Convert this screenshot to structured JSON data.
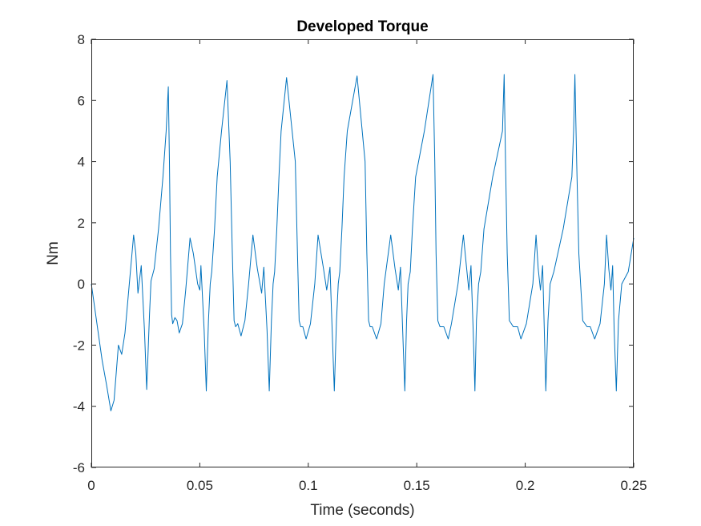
{
  "chart_data": {
    "type": "line",
    "title": "Developed Torque",
    "xlabel": "Time (seconds)",
    "ylabel": "Nm",
    "xlim": [
      0,
      0.25
    ],
    "ylim": [
      -6,
      8
    ],
    "x_ticks": [
      0,
      0.05,
      0.1,
      0.15,
      0.2,
      0.25
    ],
    "x_tick_labels": [
      "0",
      "0.05",
      "0.1",
      "0.15",
      "0.2",
      "0.25"
    ],
    "y_ticks": [
      -6,
      -4,
      -2,
      0,
      2,
      4,
      6,
      8
    ],
    "y_tick_labels": [
      "-6",
      "-4",
      "-2",
      "0",
      "2",
      "4",
      "6",
      "8"
    ],
    "grid": false,
    "box": true,
    "line_color": "#0072BD",
    "axis_color": "#262626",
    "series": [
      {
        "x": [
          0,
          0.001,
          0.003,
          0.005,
          0.007,
          0.009,
          0.0105,
          0.0125,
          0.014,
          0.0155,
          0.0175,
          0.0195,
          0.0205,
          0.0215,
          0.023,
          0.0245,
          0.0255,
          0.0268,
          0.0275,
          0.029,
          0.031,
          0.033,
          0.0345,
          0.0355,
          0.036,
          0.0365,
          0.037,
          0.0375,
          0.0385,
          0.0395,
          0.0405,
          0.042,
          0.0435,
          0.0455,
          0.047,
          0.049,
          0.05,
          0.0505,
          0.052,
          0.053,
          0.054,
          0.0548,
          0.0555,
          0.0568,
          0.058,
          0.06,
          0.0625,
          0.064,
          0.065,
          0.0658,
          0.0665,
          0.0675,
          0.069,
          0.0708,
          0.0725,
          0.0745,
          0.0765,
          0.0785,
          0.0795,
          0.081,
          0.082,
          0.083,
          0.0838,
          0.0845,
          0.0855,
          0.0865,
          0.0875,
          0.09,
          0.094,
          0.095,
          0.0958,
          0.0965,
          0.0975,
          0.099,
          0.101,
          0.103,
          0.1045,
          0.107,
          0.1085,
          0.11,
          0.111,
          0.112,
          0.113,
          0.1138,
          0.1145,
          0.1155,
          0.1165,
          0.118,
          0.1225,
          0.1262,
          0.127,
          0.1278,
          0.1285,
          0.1295,
          0.1315,
          0.1335,
          0.135,
          0.138,
          0.14,
          0.1415,
          0.1425,
          0.1435,
          0.1445,
          0.1453,
          0.146,
          0.147,
          0.148,
          0.1495,
          0.1535,
          0.1575,
          0.1583,
          0.1589,
          0.1597,
          0.1607,
          0.1625,
          0.1645,
          0.166,
          0.169,
          0.1715,
          0.173,
          0.174,
          0.175,
          0.176,
          0.1768,
          0.1775,
          0.1785,
          0.1795,
          0.181,
          0.185,
          0.1895,
          0.1903,
          0.1909,
          0.1917,
          0.1927,
          0.1945,
          0.1965,
          0.198,
          0.2005,
          0.2035,
          0.205,
          0.206,
          0.207,
          0.208,
          0.2088,
          0.2095,
          0.2105,
          0.2115,
          0.2132,
          0.2175,
          0.2215,
          0.2223,
          0.2229,
          0.2237,
          0.2247,
          0.2265,
          0.2285,
          0.23,
          0.232,
          0.2345,
          0.2365,
          0.2375,
          0.2385,
          0.2395,
          0.2403,
          0.241,
          0.242,
          0.243,
          0.2445,
          0.2475,
          0.25
        ],
        "y": [
          0,
          -0.5,
          -1.5,
          -2.5,
          -3.3,
          -4.15,
          -3.8,
          -2.0,
          -2.3,
          -1.6,
          0.0,
          1.6,
          1.0,
          -0.3,
          0.6,
          -1.5,
          -3.45,
          -1.0,
          0.1,
          0.5,
          1.8,
          3.5,
          5.0,
          6.45,
          4.0,
          1.0,
          -1.0,
          -1.3,
          -1.1,
          -1.2,
          -1.6,
          -1.3,
          -0.2,
          1.5,
          1.0,
          0.0,
          -0.2,
          0.6,
          -1.5,
          -3.5,
          -1.2,
          0.0,
          0.4,
          1.8,
          3.5,
          5.0,
          6.65,
          4.0,
          1.0,
          -1.2,
          -1.4,
          -1.3,
          -1.7,
          -1.2,
          0.0,
          1.6,
          0.5,
          -0.3,
          0.55,
          -1.5,
          -3.5,
          -1.2,
          0.0,
          0.4,
          1.8,
          3.5,
          5.0,
          6.75,
          4.0,
          1.0,
          -1.2,
          -1.4,
          -1.4,
          -1.8,
          -1.3,
          0.0,
          1.6,
          0.5,
          -0.2,
          0.55,
          -1.5,
          -3.5,
          -1.2,
          0.0,
          0.4,
          1.8,
          3.5,
          5.0,
          6.8,
          4.0,
          1.0,
          -1.2,
          -1.4,
          -1.4,
          -1.8,
          -1.3,
          0.0,
          1.6,
          0.5,
          -0.2,
          0.55,
          -1.5,
          -3.5,
          -1.2,
          0.0,
          0.4,
          1.8,
          3.5,
          5.0,
          6.85,
          4.0,
          1.0,
          -1.2,
          -1.4,
          -1.4,
          -1.8,
          -1.3,
          0.0,
          1.6,
          0.5,
          -0.2,
          0.6,
          -1.5,
          -3.5,
          -1.2,
          0.0,
          0.4,
          1.8,
          3.5,
          5.0,
          6.85,
          4.0,
          1.0,
          -1.2,
          -1.4,
          -1.4,
          -1.8,
          -1.3,
          0.0,
          1.6,
          0.5,
          -0.2,
          0.6,
          -1.5,
          -3.5,
          -1.2,
          0.0,
          0.4,
          1.8,
          3.5,
          5.0,
          6.85,
          4.0,
          1.0,
          -1.2,
          -1.4,
          -1.4,
          -1.8,
          -1.3,
          0.0,
          1.6,
          0.5,
          -0.2,
          0.6,
          -1.5,
          -3.5,
          -1.2,
          0.0,
          0.4,
          1.5
        ]
      }
    ]
  }
}
